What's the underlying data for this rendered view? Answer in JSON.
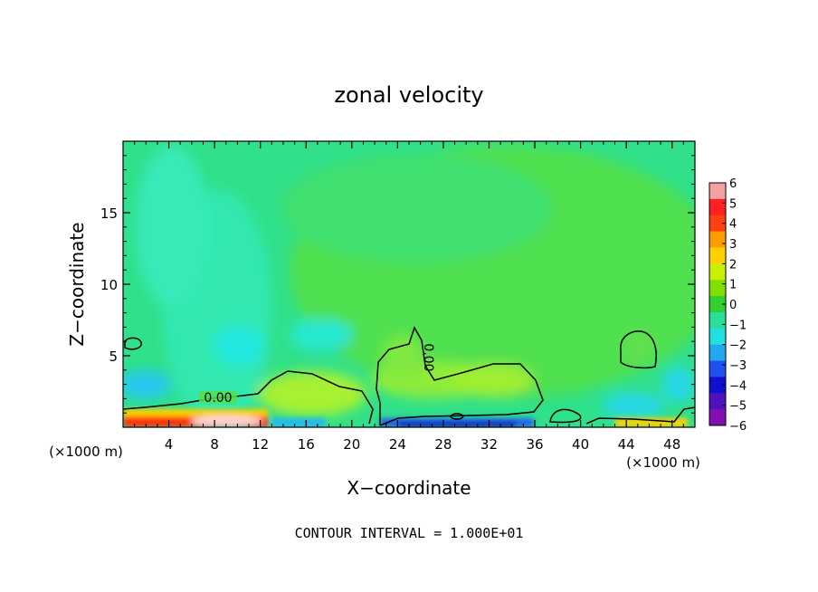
{
  "chart_data": {
    "type": "heatmap",
    "title": "zonal velocity",
    "xlabel": "X−coordinate",
    "ylabel": "Z−coordinate",
    "x_unit_left": "(×1000 m)",
    "x_unit_right": "(×1000 m)",
    "xlim": [
      0,
      50
    ],
    "ylim": [
      0,
      20
    ],
    "xticks": [
      4,
      8,
      12,
      16,
      20,
      24,
      28,
      32,
      36,
      40,
      44,
      48
    ],
    "xtick_labels": [
      "4",
      "8",
      "12",
      "16",
      "20",
      "24",
      "28",
      "32",
      "36",
      "40",
      "44",
      "48"
    ],
    "yticks": [
      5,
      10,
      15
    ],
    "ytick_labels": [
      "5",
      "10",
      "15"
    ],
    "colorbar": {
      "min": -6,
      "max": 6,
      "levels": [
        6,
        5,
        4,
        3,
        2,
        1,
        0,
        -1,
        -2,
        -3,
        -4,
        -5,
        -6
      ],
      "labels": [
        "6",
        "5",
        "4",
        "3",
        "2",
        "1",
        "0",
        "−1",
        "−2",
        "−3",
        "−4",
        "−5",
        "−6"
      ],
      "colors": [
        "#f4a0a0",
        "#ff2020",
        "#ff4010",
        "#ff9a00",
        "#ffd000",
        "#c8f000",
        "#80e000",
        "#30d030",
        "#28e09a",
        "#20e0e0",
        "#20a8f0",
        "#2050f0",
        "#1010d0",
        "#5010c0",
        "#8010b0"
      ]
    },
    "contour_labels": [
      "0.00",
      "0.00"
    ],
    "footnote": "CONTOUR INTERVAL = 1.000E+01"
  }
}
